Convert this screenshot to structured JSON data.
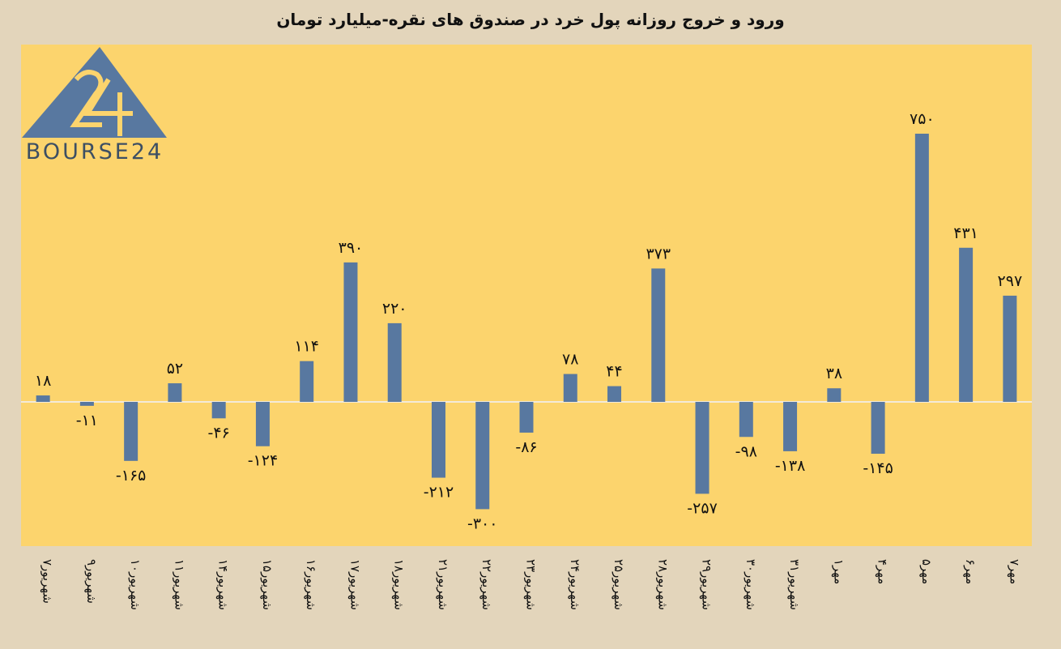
{
  "chart_data": {
    "type": "bar",
    "title": "ورود و خروج روزانه پول خرد در صندوق های نقره-میلیارد تومان",
    "categories": [
      "۷شهریور",
      "۹شهریور",
      "۱۰شهریور",
      "۱۱شهریور",
      "۱۴شهریور",
      "۱۵شهریور",
      "۱۶شهریور",
      "۱۷شهریور",
      "۱۸شهریور",
      "۲۱شهریور",
      "۲۲شهریور",
      "۲۳شهریور",
      "۲۴شهریور",
      "۲۵شهریور",
      "۲۸شهریور",
      "۲۹شهریور",
      "۳۰شهریور",
      "۳۱شهریور",
      "۱مهر",
      "۴مهر",
      "۵مهر",
      "۶مهر",
      "۷مهر"
    ],
    "values": [
      18,
      -11,
      -165,
      52,
      -46,
      -124,
      114,
      390,
      220,
      -212,
      -300,
      -86,
      78,
      44,
      373,
      -257,
      -98,
      -138,
      38,
      -145,
      750,
      431,
      297
    ],
    "value_labels": [
      "۱۸",
      "-۱۱",
      "-۱۶۵",
      "۵۲",
      "-۴۶",
      "-۱۲۴",
      "۱۱۴",
      "۳۹۰",
      "۲۲۰",
      "-۲۱۲",
      "-۳۰۰",
      "-۸۶",
      "۷۸",
      "۴۴",
      "۳۷۳",
      "-۲۵۷",
      "-۹۸",
      "-۱۳۸",
      "۳۸",
      "-۱۴۵",
      "۷۵۰",
      "۴۳۱",
      "۲۹۷"
    ],
    "xlabel": "",
    "ylabel": "",
    "ylim": [
      -390,
      990
    ],
    "grid": false,
    "bar_color": "#5878a0",
    "plot_bg": "#fcd46d",
    "page_bg": "#e3d5bb"
  },
  "logo": {
    "text": "BOURSE24",
    "numeral": "24",
    "color": "#5878a0"
  }
}
